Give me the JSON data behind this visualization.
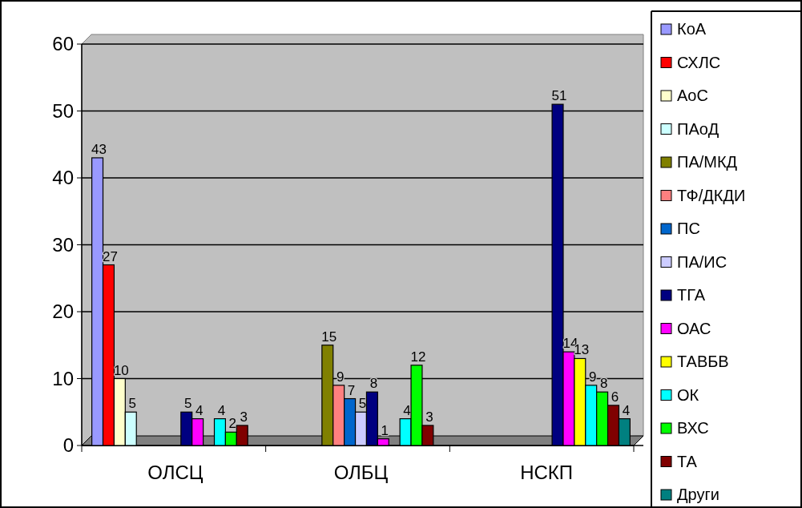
{
  "chart_data": {
    "type": "bar",
    "categories": [
      "ОЛСЦ",
      "ОЛБЦ",
      "НСКП"
    ],
    "ylim": [
      0,
      60
    ],
    "yticks": [
      0,
      10,
      20,
      30,
      40,
      50,
      60
    ],
    "grid": "y",
    "legend": "right",
    "data_labels": true,
    "series": [
      {
        "name": "КоА",
        "color": "#9999ff",
        "values": [
          43,
          null,
          null
        ]
      },
      {
        "name": "СХЛС",
        "color": "#ff0000",
        "values": [
          27,
          null,
          null
        ]
      },
      {
        "name": "АоС",
        "color": "#ffffcc",
        "values": [
          10,
          null,
          null
        ]
      },
      {
        "name": "ПАоД",
        "color": "#ccffff",
        "values": [
          5,
          null,
          null
        ]
      },
      {
        "name": "ПА/МКД",
        "color": "#808000",
        "values": [
          null,
          15,
          null
        ]
      },
      {
        "name": "ТФ/ДКДИ",
        "color": "#ff8080",
        "values": [
          null,
          9,
          null
        ]
      },
      {
        "name": "ПС",
        "color": "#0066cc",
        "values": [
          null,
          7,
          null
        ]
      },
      {
        "name": "ПА/ИС",
        "color": "#ccccff",
        "values": [
          null,
          5,
          null
        ]
      },
      {
        "name": "ТГА",
        "color": "#000080",
        "values": [
          5,
          8,
          51
        ]
      },
      {
        "name": "ОАС",
        "color": "#ff00ff",
        "values": [
          4,
          1,
          14
        ]
      },
      {
        "name": "ТАВБВ",
        "color": "#ffff00",
        "values": [
          null,
          null,
          13
        ]
      },
      {
        "name": "ОК",
        "color": "#00ffff",
        "values": [
          4,
          4,
          9
        ]
      },
      {
        "name": "ВХС",
        "color": "#00ff00",
        "values": [
          2,
          12,
          8
        ]
      },
      {
        "name": "ТА",
        "color": "#800000",
        "values": [
          3,
          3,
          6
        ]
      },
      {
        "name": "Други",
        "color": "#008080",
        "values": [
          null,
          null,
          4
        ]
      }
    ]
  }
}
